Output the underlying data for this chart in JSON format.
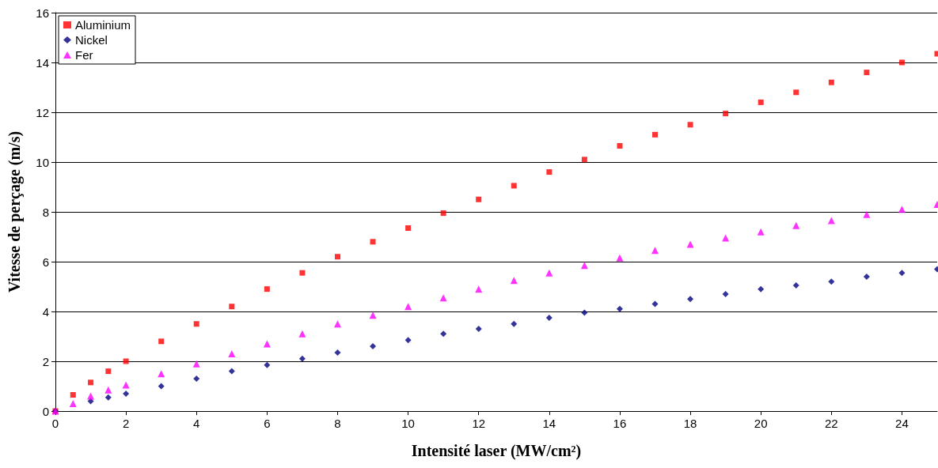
{
  "chart_data": {
    "type": "scatter",
    "xlabel": "Intensité laser (MW/cm²)",
    "ylabel": "Vitesse de perçage (m/s)",
    "x": [
      0,
      0.5,
      1,
      1.5,
      2,
      3,
      4,
      5,
      6,
      7,
      8,
      9,
      10,
      11,
      12,
      13,
      14,
      15,
      16,
      17,
      18,
      19,
      20,
      21,
      22,
      23,
      24,
      25
    ],
    "series": [
      {
        "name": "Aluminium",
        "color": "#ff0000",
        "marker": "square",
        "values": [
          0,
          0.65,
          1.15,
          1.6,
          2.0,
          2.8,
          3.5,
          4.2,
          4.9,
          5.55,
          6.2,
          6.8,
          7.35,
          7.95,
          8.5,
          9.05,
          9.6,
          10.1,
          10.65,
          11.1,
          11.5,
          11.95,
          12.4,
          12.8,
          13.2,
          13.6,
          14.0,
          14.35
        ]
      },
      {
        "name": "Nickel",
        "color": "#000080",
        "marker": "diamond",
        "x": [
          0,
          1,
          1.5,
          2,
          3,
          4,
          5,
          6,
          7,
          8,
          9,
          10,
          11,
          12,
          13,
          14,
          15,
          16,
          17,
          18,
          19,
          20,
          21,
          22,
          23,
          24,
          25
        ],
        "values": [
          0,
          0.4,
          0.55,
          0.7,
          1.0,
          1.3,
          1.6,
          1.85,
          2.1,
          2.35,
          2.6,
          2.85,
          3.1,
          3.3,
          3.5,
          3.75,
          3.95,
          4.1,
          4.3,
          4.5,
          4.7,
          4.9,
          5.05,
          5.2,
          5.4,
          5.55,
          5.7
        ]
      },
      {
        "name": "Fer",
        "color": "#ff00ff",
        "marker": "triangle",
        "values": [
          0,
          0.3,
          0.6,
          0.85,
          1.05,
          1.5,
          1.9,
          2.3,
          2.7,
          3.1,
          3.5,
          3.85,
          4.2,
          4.55,
          4.9,
          5.25,
          5.55,
          5.85,
          6.15,
          6.45,
          6.7,
          6.95,
          7.2,
          7.45,
          7.65,
          7.9,
          8.1,
          8.3
        ]
      }
    ],
    "xlim": [
      0,
      25
    ],
    "xticks": [
      0,
      2,
      4,
      6,
      8,
      10,
      12,
      14,
      16,
      18,
      20,
      22,
      24
    ],
    "ylim": [
      0,
      16
    ],
    "yticks": [
      0,
      2,
      4,
      6,
      8,
      10,
      12,
      14,
      16
    ],
    "grid": "y",
    "legend": "top left"
  }
}
